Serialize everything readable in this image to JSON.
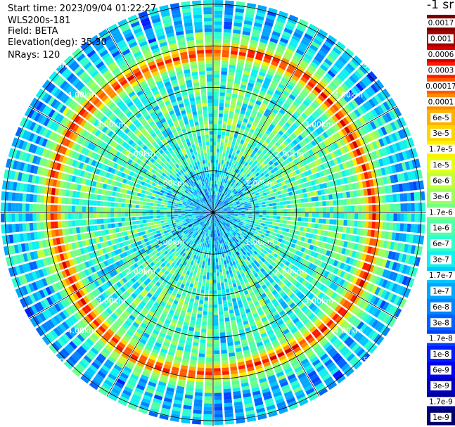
{
  "info": {
    "start_time": "Start time: 2023/09/04 01:22:27",
    "instrument": "WLS200s-181",
    "field": "Field: BETA",
    "elevation": "Elevation(deg): 35.30",
    "nrays": "NRays: 120"
  },
  "colorbar": {
    "unit_label": "-1 sr",
    "labels": [
      "0.0017",
      "0.001",
      "0.0006",
      "0.0003",
      "0.00017",
      "0.0001",
      "6e-5",
      "3e-5",
      "1.7e-5",
      "1e-5",
      "6e-6",
      "3e-6",
      "1.7e-6",
      "1e-6",
      "6e-7",
      "3e-7",
      "1.7e-7",
      "1e-7",
      "6e-8",
      "3e-8",
      "1.7e-8",
      "1e-8",
      "6e-9",
      "3e-9",
      "1.7e-9",
      "1e-9"
    ],
    "colors": [
      "#7a0000",
      "#a00000",
      "#d40000",
      "#ff1a00",
      "#ff5a00",
      "#ff8c00",
      "#ffb000",
      "#ffd500",
      "#fff200",
      "#e8ff10",
      "#c2ff36",
      "#9cff5c",
      "#76ff82",
      "#52ffa6",
      "#2effcc",
      "#10f0ef",
      "#00c8ff",
      "#00a6ff",
      "#0084ff",
      "#0062ff",
      "#0040ff",
      "#001eff",
      "#0000ee",
      "#0000c0",
      "#000096",
      "#00006e"
    ]
  },
  "range_rings": [
    {
      "range_km": 1,
      "label": "1.00km"
    },
    {
      "range_km": 2,
      "label": "2.00km"
    },
    {
      "range_km": 3,
      "label": "3.00km"
    },
    {
      "range_km": 4,
      "label": "4.00km"
    },
    {
      "range_km": 5,
      "label": "5.00km"
    }
  ],
  "chart_data": {
    "type": "heatmap",
    "description_type": "polar PPI scan",
    "field": "BETA",
    "nrays": 120,
    "max_range_km": 5.1,
    "ring_ranges_km": [
      1,
      2,
      3,
      4,
      5
    ],
    "spoke_step_deg": 30,
    "feature": {
      "enhanced_layer_range_km": 3.85,
      "layer_peak_value": "0.00017"
    },
    "background_level": "1e-6"
  }
}
